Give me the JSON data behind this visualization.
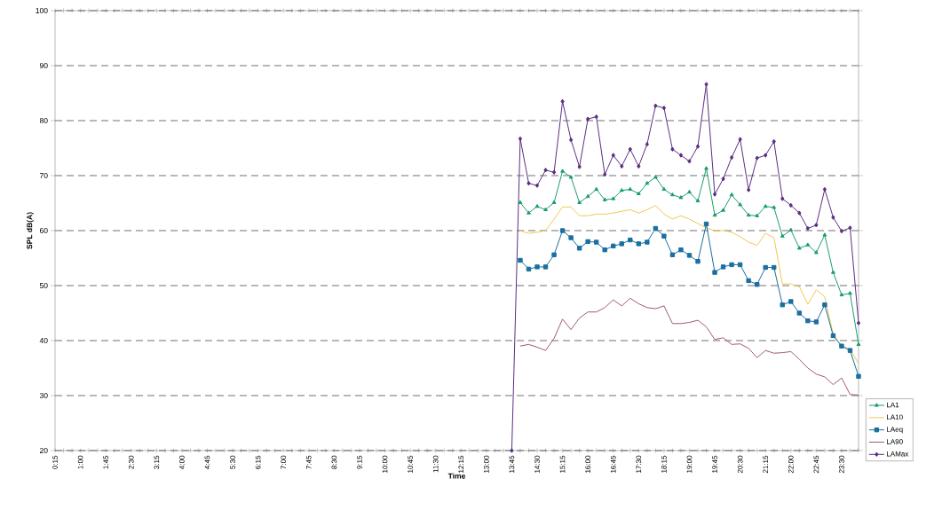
{
  "chart_data": {
    "type": "line",
    "xlabel": "Time",
    "ylabel": "SPL  dB(A)",
    "categories": [
      "0:15",
      null,
      null,
      "1:00",
      null,
      null,
      "1:45",
      null,
      null,
      "2:30",
      null,
      null,
      "3:15",
      null,
      null,
      "4:00",
      null,
      null,
      "4:45",
      null,
      null,
      "5:30",
      null,
      null,
      "6:15",
      null,
      null,
      "7:00",
      null,
      null,
      "7:45",
      null,
      null,
      "8:30",
      null,
      null,
      "9:15",
      null,
      null,
      "10:00",
      null,
      null,
      "10:45",
      null,
      null,
      "11:30",
      null,
      null,
      "12:15",
      null,
      null,
      "13:00",
      null,
      null,
      "13:45",
      null,
      null,
      "14:30",
      null,
      null,
      "15:15",
      null,
      null,
      "16:00",
      null,
      null,
      "16:45",
      null,
      null,
      "17:30",
      null,
      null,
      "18:15",
      null,
      null,
      "19:00",
      null,
      null,
      "19:45",
      null,
      null,
      "20:30",
      null,
      null,
      "21:15",
      null,
      null,
      "22:00",
      null,
      null,
      "22:45",
      null,
      null,
      "23:30",
      null,
      null
    ],
    "ylim": [
      20,
      100
    ],
    "yticks": [
      20,
      30,
      40,
      50,
      60,
      70,
      80,
      90,
      100
    ],
    "grid": "y",
    "legend": "right",
    "series": [
      {
        "name": "LA1",
        "color": "#1a9e6e",
        "marker": "triangle",
        "values": [
          null,
          null,
          null,
          null,
          null,
          null,
          null,
          null,
          null,
          null,
          null,
          null,
          null,
          null,
          null,
          null,
          null,
          null,
          null,
          null,
          null,
          null,
          null,
          null,
          null,
          null,
          null,
          null,
          null,
          null,
          null,
          null,
          null,
          null,
          null,
          null,
          null,
          null,
          null,
          null,
          null,
          null,
          null,
          null,
          null,
          null,
          null,
          null,
          null,
          null,
          null,
          null,
          null,
          null,
          null,
          65.1,
          63.2,
          64.4,
          63.8,
          65.1,
          70.8,
          69.7,
          65.1,
          66.2,
          67.5,
          65.6,
          65.8,
          67.3,
          67.5,
          66.7,
          68.6,
          69.7,
          67.5,
          66.5,
          66,
          67,
          65.4,
          71.3,
          62.8,
          63.7,
          66.5,
          64.7,
          62.8,
          62.7,
          64.4,
          64.2,
          59,
          60.1,
          56.8,
          57.4,
          56,
          59.2,
          52.4,
          48.3,
          48.6,
          39.3
        ]
      },
      {
        "name": "LA10",
        "color": "#f0c850",
        "marker": "none",
        "values": [
          null,
          null,
          null,
          null,
          null,
          null,
          null,
          null,
          null,
          null,
          null,
          null,
          null,
          null,
          null,
          null,
          null,
          null,
          null,
          null,
          null,
          null,
          null,
          null,
          null,
          null,
          null,
          null,
          null,
          null,
          null,
          null,
          null,
          null,
          null,
          null,
          null,
          null,
          null,
          null,
          null,
          null,
          null,
          null,
          null,
          null,
          null,
          null,
          null,
          null,
          null,
          null,
          null,
          null,
          null,
          60,
          59.5,
          59.7,
          60,
          62.1,
          64.3,
          64.3,
          62.7,
          62.7,
          63,
          63,
          63.2,
          63.5,
          63.8,
          63.2,
          63.8,
          64.6,
          63,
          62.1,
          62.7,
          62.1,
          61.3,
          60.5,
          60,
          60,
          59.7,
          58.9,
          57.9,
          57.3,
          59.5,
          58.7,
          50.3,
          50.3,
          49.8,
          46.6,
          49.2,
          48,
          41.2,
          39,
          38.5,
          35.8
        ]
      },
      {
        "name": "LAeq",
        "color": "#1a6ea0",
        "marker": "square",
        "values": [
          null,
          null,
          null,
          null,
          null,
          null,
          null,
          null,
          null,
          null,
          null,
          null,
          null,
          null,
          null,
          null,
          null,
          null,
          null,
          null,
          null,
          null,
          null,
          null,
          null,
          null,
          null,
          null,
          null,
          null,
          null,
          null,
          null,
          null,
          null,
          null,
          null,
          null,
          null,
          null,
          null,
          null,
          null,
          null,
          null,
          null,
          null,
          null,
          null,
          null,
          null,
          null,
          null,
          null,
          null,
          54.6,
          53,
          53.4,
          53.4,
          55.6,
          60,
          58.7,
          56.8,
          58,
          57.9,
          56.5,
          57.2,
          57.6,
          58.3,
          57.6,
          57.9,
          60.4,
          59,
          55.6,
          56.5,
          55.5,
          54.4,
          61.2,
          52.4,
          53.4,
          53.8,
          53.8,
          50.9,
          50.2,
          53.3,
          53.3,
          46.5,
          47.1,
          45,
          43.6,
          43.4,
          46.5,
          40.9,
          39,
          38.2,
          33.5
        ]
      },
      {
        "name": "LA90",
        "color": "#a05a6e",
        "marker": "none",
        "values": [
          null,
          null,
          null,
          null,
          null,
          null,
          null,
          null,
          null,
          null,
          null,
          null,
          null,
          null,
          null,
          null,
          null,
          null,
          null,
          null,
          null,
          null,
          null,
          null,
          null,
          null,
          null,
          null,
          null,
          null,
          null,
          null,
          null,
          null,
          null,
          null,
          null,
          null,
          null,
          null,
          null,
          null,
          null,
          null,
          null,
          null,
          null,
          null,
          null,
          null,
          null,
          null,
          null,
          null,
          null,
          39,
          39.3,
          38.8,
          38.2,
          40.4,
          43.9,
          42,
          44.1,
          45.2,
          45.2,
          46,
          47.4,
          46.3,
          47.7,
          46.7,
          46,
          45.8,
          46.3,
          43.1,
          43.1,
          43.3,
          43.7,
          42.5,
          40.2,
          40.5,
          39.3,
          39.4,
          38.6,
          36.9,
          38.2,
          37.7,
          37.8,
          38,
          36.6,
          35,
          33.9,
          33.4,
          32,
          33.2,
          30.2,
          30.1
        ]
      },
      {
        "name": "LAMax",
        "color": "#5a2d82",
        "marker": "diamond",
        "values": [
          null,
          null,
          null,
          null,
          null,
          null,
          null,
          null,
          null,
          null,
          null,
          null,
          null,
          null,
          null,
          null,
          null,
          null,
          null,
          null,
          null,
          null,
          null,
          null,
          null,
          null,
          null,
          null,
          null,
          null,
          null,
          null,
          null,
          null,
          null,
          null,
          null,
          null,
          null,
          null,
          null,
          null,
          null,
          null,
          null,
          null,
          null,
          null,
          null,
          null,
          null,
          null,
          null,
          null,
          20,
          76.7,
          68.6,
          68.2,
          71,
          70.6,
          83.5,
          76.5,
          71.6,
          80.3,
          80.7,
          70.2,
          73.7,
          71.7,
          74.8,
          71.7,
          75.7,
          82.7,
          82.3,
          74.8,
          73.7,
          72.6,
          75.3,
          86.6,
          66.6,
          69.4,
          73.3,
          76.6,
          67.4,
          73.2,
          73.7,
          76.2,
          65.8,
          64.6,
          63.2,
          60.4,
          61,
          67.5,
          62.4,
          59.9,
          60.5,
          43.2
        ]
      }
    ]
  }
}
